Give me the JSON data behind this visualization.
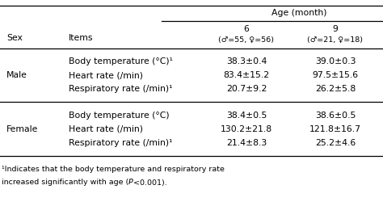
{
  "age_header": "Age (month)",
  "col6_sub": "(♂=55, ♀=56)",
  "col9_sub": "(♂=21, ♀=18)",
  "rows": [
    [
      "",
      "Body temperature (°C)¹",
      "38.3±0.4",
      "39.0±0.3"
    ],
    [
      "Male",
      "Heart rate (/min)",
      "83.4±15.2",
      "97.5±15.6"
    ],
    [
      "",
      "Respiratory rate (/min)¹",
      "20.7±9.2",
      "26.2±5.8"
    ],
    [
      "",
      "Body temperature (°C)",
      "38.4±0.5",
      "38.6±0.5"
    ],
    [
      "Female",
      "Heart rate (/min)",
      "130.2±21.8",
      "121.8±16.7"
    ],
    [
      "",
      "Respiratory rate (/min)¹",
      "21.4±8.3",
      "25.2±4.6"
    ]
  ],
  "footnote_prefix": "¹Indicates that the body temperature and respiratory rate",
  "footnote_line2": "increased significantly with age (",
  "footnote_italic": "P",
  "footnote_rest": "<0.001).",
  "bg_color": "#ffffff",
  "text_color": "#000000",
  "font_size": 7.8
}
